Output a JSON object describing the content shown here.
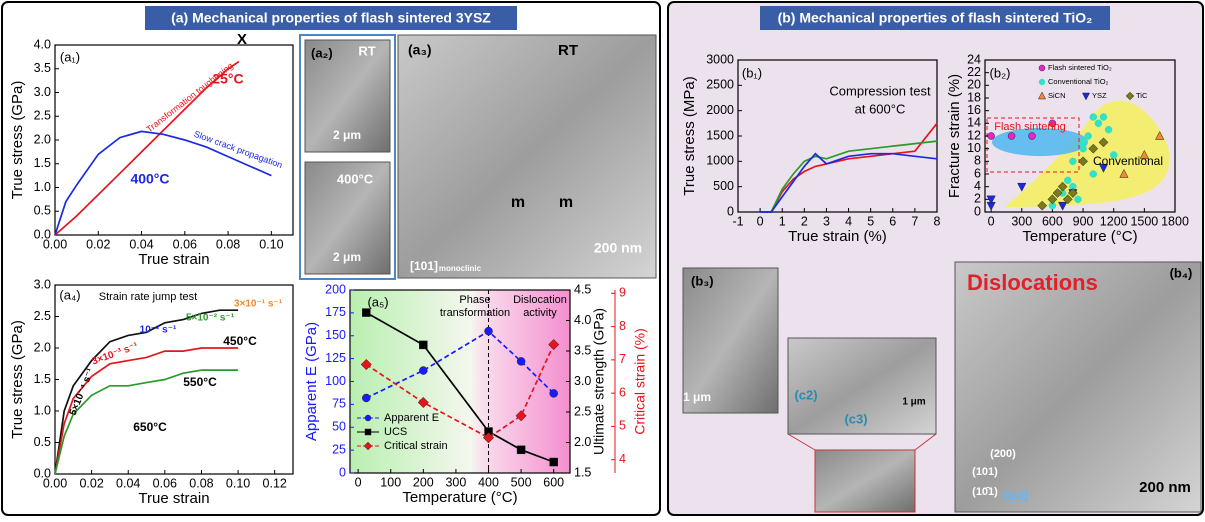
{
  "headers": [
    "(a) Mechanical properties of flash sintered 3YSZ",
    "(b) Mechanical properties of flash sintered TiO₂"
  ],
  "chart_data": [
    {
      "type": "line",
      "panel_label": "(a₁)",
      "x_label": "True strain",
      "y_label": "True stress (GPa)",
      "xlim": [
        0,
        0.11
      ],
      "ylim": [
        0,
        4.0
      ],
      "xticks": [
        {
          "value": 0,
          "label": "0.00"
        },
        0.02,
        0.04,
        0.06,
        0.08,
        {
          "value": 0.1,
          "label": "0.10"
        }
      ],
      "yticks": [
        {
          "value": 0,
          "label": "0.0"
        },
        0.5,
        {
          "value": 1,
          "label": "1.0"
        },
        1.5,
        {
          "value": 2,
          "label": "2.0"
        },
        2.5,
        {
          "value": 3,
          "label": "3.0"
        },
        3.5,
        {
          "value": 4,
          "label": "4.0"
        }
      ],
      "series": [
        {
          "color": "#e8141b",
          "x": [
            0,
            0.01,
            0.02,
            0.03,
            0.04,
            0.05,
            0.06,
            0.07,
            0.08,
            0.085
          ],
          "values": [
            0,
            0.4,
            0.85,
            1.3,
            1.75,
            2.2,
            2.65,
            3.1,
            3.5,
            3.65
          ]
        },
        {
          "color": "#1a2ae0",
          "x": [
            0,
            0.005,
            0.01,
            0.02,
            0.03,
            0.04,
            0.05,
            0.06,
            0.07,
            0.08,
            0.09,
            0.1
          ],
          "values": [
            0,
            0.7,
            1.05,
            1.7,
            2.05,
            2.18,
            2.12,
            2.0,
            1.85,
            1.65,
            1.45,
            1.25
          ]
        }
      ],
      "annotations": [
        "X",
        "Transformation toughening",
        "25°C",
        "Slow crack propagation",
        "400°C"
      ]
    },
    {
      "type": "line",
      "panel_label": "(a₄)",
      "x_label": "True strain",
      "y_label": "True stress (GPa)",
      "xlim": [
        0,
        0.13
      ],
      "ylim": [
        0,
        3.0
      ],
      "xticks": [
        {
          "value": 0,
          "label": "0.00"
        },
        0.02,
        0.04,
        0.06,
        0.08,
        {
          "value": 0.1,
          "label": "0.10"
        },
        0.12
      ],
      "yticks": [
        {
          "value": 0,
          "label": "0.0"
        },
        0.5,
        {
          "value": 1,
          "label": "1.0"
        },
        1.5,
        {
          "value": 2,
          "label": "2.0"
        },
        2.5,
        {
          "value": 3,
          "label": "3.0"
        }
      ],
      "x": [
        0,
        0.005,
        0.01,
        0.02,
        0.03,
        0.04,
        0.05,
        0.06,
        0.07,
        0.08,
        0.09,
        0.1
      ],
      "series": [
        {
          "color": "#111111",
          "values": [
            0,
            1.0,
            1.4,
            1.8,
            2.1,
            2.2,
            2.25,
            2.4,
            2.45,
            2.55,
            2.6,
            2.6
          ]
        },
        {
          "color": "#e8141b",
          "values": [
            0,
            0.8,
            1.2,
            1.55,
            1.75,
            1.8,
            1.85,
            1.95,
            1.95,
            2.0,
            2.0,
            2.0
          ]
        },
        {
          "color": "#2a9a2a",
          "values": [
            0,
            0.6,
            0.95,
            1.25,
            1.4,
            1.4,
            1.45,
            1.5,
            1.6,
            1.65,
            1.65,
            1.65
          ]
        }
      ],
      "annotations": [
        "Strain rate jump test",
        "5×10⁻⁴ s⁻¹",
        "3×10⁻³ s⁻¹",
        "10⁻² s⁻¹",
        "5×10⁻² s⁻¹",
        "3×10⁻¹ s⁻¹",
        "450°C",
        "550°C",
        "650°C"
      ]
    },
    {
      "type": "line",
      "panel_label": "(a₅)",
      "x_label": "Temperature (°C)",
      "y_label": "Apparent E (GPa)",
      "y2_label": "Ultimate strength (GPa)",
      "y3_label": "Critical strain (%)",
      "y_color": "#1a1aff",
      "y2_color": "#000000",
      "y3_color": "#e8141b",
      "xlim": [
        -25,
        650
      ],
      "ylim": [
        0,
        200
      ],
      "y2lim": [
        1.5,
        4.5
      ],
      "y3lim": [
        3.6,
        9.1
      ],
      "xticks": [
        0,
        100,
        200,
        300,
        400,
        500,
        600
      ],
      "yticks": [
        0,
        25,
        50,
        75,
        100,
        125,
        150,
        175,
        200
      ],
      "y2ticks": [
        1.5,
        {
          "value": 2,
          "label": "2.0"
        },
        2.5,
        {
          "value": 3,
          "label": "3.0"
        },
        3.5,
        {
          "value": 4,
          "label": "4.0"
        },
        4.5
      ],
      "y3ticks": [
        4,
        5,
        6,
        7,
        8,
        9
      ],
      "vline": 400,
      "x": [
        25,
        200,
        400,
        500,
        600
      ],
      "legend": true,
      "series": [
        {
          "name": "Apparent E",
          "color": "#1a1aff",
          "marker": "circle",
          "dash": true,
          "values": [
            82,
            112,
            155,
            122,
            87
          ]
        },
        {
          "name": "UCS",
          "color": "#000000",
          "marker": "square",
          "axis": "y2",
          "values": [
            4.13,
            3.6,
            2.18,
            1.88,
            1.68
          ]
        },
        {
          "name": "Critical strain",
          "color": "#e8141b",
          "marker": "diamond",
          "dash": true,
          "axis": "y3",
          "values": [
            6.86,
            5.72,
            4.66,
            5.32,
            7.46
          ]
        }
      ],
      "annotations": [
        "Phase",
        "transformation",
        "Dislocation",
        "activity"
      ]
    },
    {
      "type": "line",
      "panel_label": "(b₁)",
      "x_label": "True strain (%)",
      "y_label": "True stress (MPa)",
      "xlim": [
        -1,
        8
      ],
      "ylim": [
        0,
        3000
      ],
      "xticks": [
        -1,
        0,
        1,
        2,
        3,
        4,
        5,
        6,
        7,
        8
      ],
      "yticks": [
        0,
        500,
        1000,
        1500,
        2000,
        2500,
        3000
      ],
      "x": [
        0,
        0.5,
        1,
        1.5,
        2,
        2.5,
        3,
        4,
        5,
        6,
        7,
        8
      ],
      "series": [
        {
          "color": "#e8141b",
          "values": [
            0,
            0,
            400,
            650,
            800,
            900,
            950,
            1050,
            1100,
            1150,
            1200,
            1750
          ]
        },
        {
          "color": "#2a9a2a",
          "values": [
            0,
            0,
            450,
            750,
            1000,
            1100,
            1050,
            1200,
            1250,
            1300,
            1350,
            1400
          ]
        },
        {
          "color": "#1a2ae0",
          "values": [
            0,
            0,
            300,
            600,
            900,
            1150,
            950,
            1100,
            1150,
            1150,
            1100,
            1050
          ]
        }
      ],
      "annotations": [
        "Compression test",
        "at 600°C"
      ]
    },
    {
      "type": "scatter",
      "panel_label": "(b₂)",
      "x_label": "Temperature (°C)",
      "y_label": "Fracture strain (%)",
      "xlim": [
        -60,
        1800
      ],
      "ylim": [
        0,
        24
      ],
      "xticks": [
        0,
        300,
        600,
        900,
        1200,
        1500,
        1800
      ],
      "yticks": [
        0,
        2,
        4,
        6,
        8,
        10,
        12,
        14,
        16,
        18,
        20,
        22,
        24
      ],
      "legend": true,
      "series": [
        {
          "name": "Flash sintered TiO₂",
          "color": "#ee22cc",
          "marker": "circle",
          "x": [
            0,
            200,
            400,
            600
          ],
          "values": [
            12,
            12,
            12,
            14
          ]
        },
        {
          "name": "Conventional TiO₂",
          "color": "#33e0c8",
          "marker": "circle",
          "x": [
            600,
            700,
            750,
            800,
            850,
            900,
            950,
            1000,
            1050,
            1100,
            1150,
            1200,
            800,
            900,
            1000
          ],
          "values": [
            1,
            3,
            5,
            8,
            2,
            10,
            12,
            6,
            14,
            15,
            13,
            9,
            4,
            11,
            15
          ]
        },
        {
          "name": "SiCN",
          "color": "#f08a30",
          "marker": "triangle-up",
          "x": [
            1300,
            1500,
            1650
          ],
          "values": [
            6,
            9,
            12
          ]
        },
        {
          "name": "YSZ",
          "color": "#1a2ae0",
          "marker": "triangle-down",
          "x": [
            0,
            0,
            300,
            700,
            800,
            1100
          ],
          "values": [
            1,
            2,
            4,
            1,
            3,
            7
          ]
        },
        {
          "name": "TiC",
          "color": "#7a7a1a",
          "marker": "diamond",
          "x": [
            500,
            600,
            650,
            700,
            750,
            800,
            900,
            1000,
            1100
          ],
          "values": [
            1,
            2,
            3,
            4,
            2,
            3,
            8,
            10,
            11
          ]
        }
      ],
      "annotations": [
        "Flash sintering",
        "Conventional"
      ]
    }
  ],
  "micrographs": [
    {
      "labels": [
        "(a₂)",
        "RT",
        "2 μm"
      ]
    },
    {
      "labels": [
        "400°C",
        "2 μm"
      ]
    },
    {
      "labels": [
        "(a₃)",
        "RT",
        "m",
        "m",
        "200 nm",
        "[101]",
        "monoclinic"
      ]
    },
    {
      "labels": [
        "(b₃)",
        "1 μm"
      ]
    },
    {
      "labels": [
        "(c2)",
        "(c3)",
        "1 μm"
      ]
    },
    {
      "labels": [
        "Dislocations",
        "(b₄)",
        "200 nm",
        "(200)",
        "(101)",
        "(10̄1)",
        "[010]"
      ]
    }
  ]
}
